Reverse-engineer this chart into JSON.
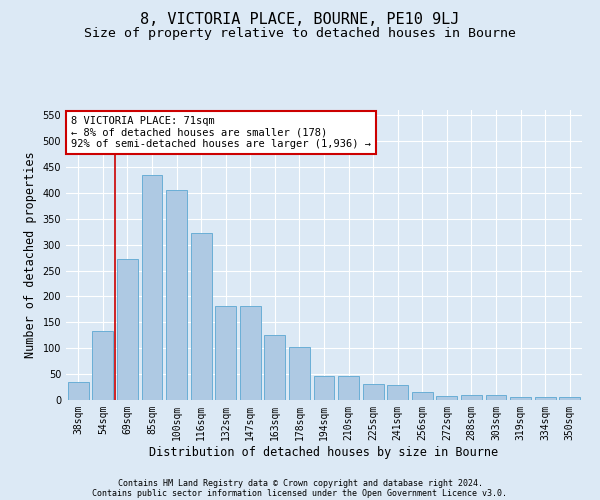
{
  "title": "8, VICTORIA PLACE, BOURNE, PE10 9LJ",
  "subtitle": "Size of property relative to detached houses in Bourne",
  "xlabel": "Distribution of detached houses by size in Bourne",
  "ylabel": "Number of detached properties",
  "categories": [
    "38sqm",
    "54sqm",
    "69sqm",
    "85sqm",
    "100sqm",
    "116sqm",
    "132sqm",
    "147sqm",
    "163sqm",
    "178sqm",
    "194sqm",
    "210sqm",
    "225sqm",
    "241sqm",
    "256sqm",
    "272sqm",
    "288sqm",
    "303sqm",
    "319sqm",
    "334sqm",
    "350sqm"
  ],
  "values": [
    35,
    133,
    272,
    435,
    405,
    322,
    181,
    181,
    125,
    103,
    47,
    46,
    30,
    29,
    15,
    7,
    10,
    10,
    5,
    5,
    5
  ],
  "bar_color": "#aec9e3",
  "bar_edge_color": "#6aaed6",
  "background_color": "#dce9f5",
  "grid_color": "#ffffff",
  "vline_color": "#cc0000",
  "vline_index": 2,
  "annotation_text": "8 VICTORIA PLACE: 71sqm\n← 8% of detached houses are smaller (178)\n92% of semi-detached houses are larger (1,936) →",
  "annotation_box_facecolor": "#ffffff",
  "annotation_box_edgecolor": "#cc0000",
  "ylim": [
    0,
    560
  ],
  "yticks": [
    0,
    50,
    100,
    150,
    200,
    250,
    300,
    350,
    400,
    450,
    500,
    550
  ],
  "footer1": "Contains HM Land Registry data © Crown copyright and database right 2024.",
  "footer2": "Contains public sector information licensed under the Open Government Licence v3.0.",
  "title_fontsize": 11,
  "subtitle_fontsize": 9.5,
  "tick_fontsize": 7,
  "ylabel_fontsize": 8.5,
  "xlabel_fontsize": 8.5,
  "annotation_fontsize": 7.5,
  "footer_fontsize": 6,
  "bar_width": 0.85
}
